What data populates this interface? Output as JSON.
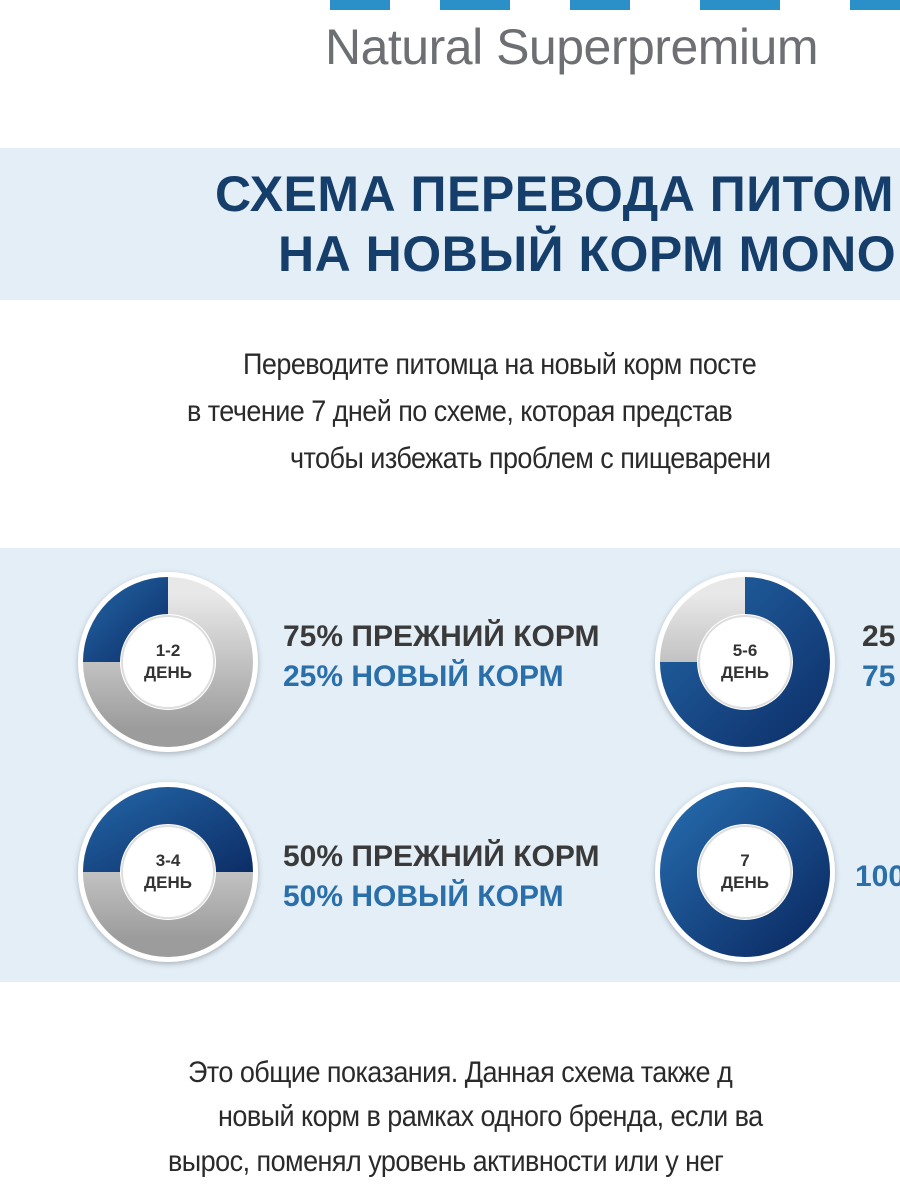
{
  "header": {
    "brand_subtitle": "Natural Superpremium"
  },
  "title": {
    "lines": [
      "СХЕМА ПЕРЕВОДА ПИТОМ",
      "НА НОВЫЙ КОРМ MONO"
    ]
  },
  "intro": {
    "lines": [
      "Переводите питомца на новый корм посте",
      "в течение 7 дней по схеме, которая представ",
      "чтобы избежать проблем с пищеварени"
    ]
  },
  "steps": [
    {
      "day_number": "1-2",
      "day_word": "ДЕНЬ",
      "old_line": "75% ПРЕЖНИЙ КОРМ",
      "new_line": "25% НОВЫЙ КОРМ"
    },
    {
      "day_number": "5-6",
      "day_word": "ДЕНЬ",
      "old_line": "25",
      "new_line": "75"
    },
    {
      "day_number": "3-4",
      "day_word": "ДЕНЬ",
      "old_line": "50% ПРЕЖНИЙ КОРМ",
      "new_line": "50% НОВЫЙ КОРМ"
    },
    {
      "day_number": "7",
      "day_word": "ДЕНЬ",
      "new_line": "100"
    }
  ],
  "footer": {
    "lines": [
      "Это общие показания. Данная схема также д",
      "новый корм в рамках одного бренда, если ва",
      "вырос, поменял уровень активности или у нег"
    ]
  }
}
